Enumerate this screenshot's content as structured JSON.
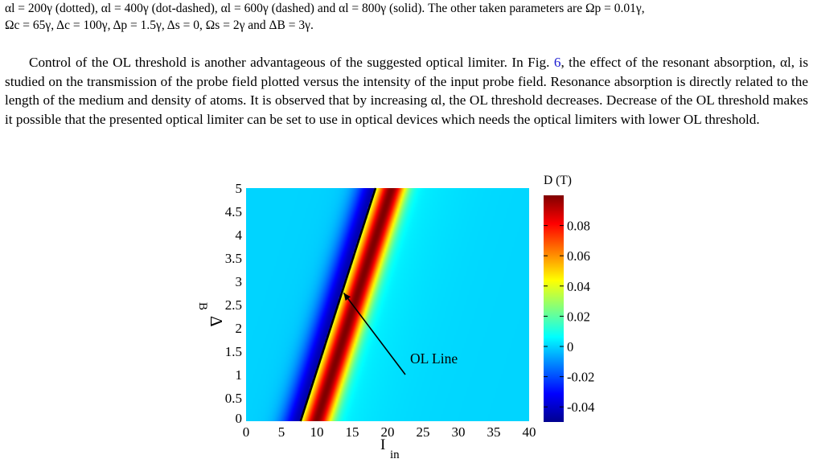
{
  "caption": {
    "line1": "αl = 200γ (dotted), αl = 400γ (dot-dashed), αl = 600γ (dashed) and αl = 800γ (solid). The other taken parameters are Ωp = 0.01γ,",
    "line2": "Ωc = 65γ, Δc = 100γ, Δp = 1.5γ, Δs = 0, Ωs = 2γ and ΔB = 3γ."
  },
  "paragraph": {
    "before_ref": "Control of the OL threshold is another advantageous of the suggested optical limiter. In Fig.",
    "ref": "6",
    "after_ref": ", the effect of the resonant absorption, αl, is studied on the transmission of the probe field plotted versus the intensity of the input probe field. Resonance absorption is directly related to the length of the medium and density of atoms. It is observed that by increasing αl, the OL threshold decreases. Decrease of the OL threshold makes it possible that the presented optical limiter can be set to use in optical devices which needs the optical limiters with lower OL threshold."
  },
  "chart_data": {
    "type": "heatmap",
    "xlabel": "I",
    "xlabel_sub": "in",
    "ylabel": "Δ",
    "ylabel_sub": "B",
    "xlim": [
      0,
      40
    ],
    "ylim": [
      0,
      5
    ],
    "x_ticks": [
      "0",
      "5",
      "10",
      "15",
      "20",
      "25",
      "30",
      "35",
      "40"
    ],
    "y_ticks": [
      "0",
      "0.5",
      "1",
      "1.5",
      "2",
      "2.5",
      "3",
      "3.5",
      "4",
      "4.5",
      "5"
    ],
    "colorbar": {
      "title": "D (T)",
      "range": [
        -0.05,
        0.1
      ],
      "ticks": [
        "0.08",
        "0.06",
        "0.04",
        "0.02",
        "0",
        "-0.02",
        "-0.04"
      ],
      "tick_values": [
        0.08,
        0.06,
        0.04,
        0.02,
        0,
        -0.02,
        -0.04
      ]
    },
    "ol_line": {
      "label": "OL Line",
      "points": [
        [
          7.7,
          0
        ],
        [
          18.3,
          5
        ]
      ]
    },
    "annotation": {
      "text": "OL Line",
      "arrow_tip": [
        13.8,
        2.75
      ],
      "arrow_tail": [
        22.5,
        1.0
      ]
    }
  },
  "colors": {
    "figref": "#1a1ad0",
    "jet_low": "#00008f",
    "jet_high": "#800000",
    "background_field": "#00cfe0"
  }
}
